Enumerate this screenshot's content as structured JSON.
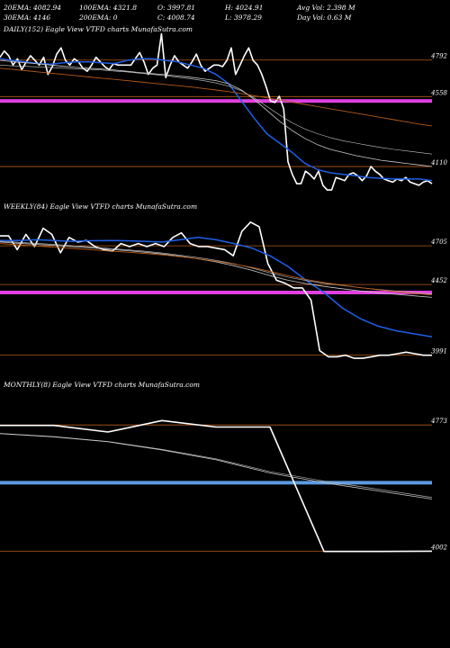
{
  "header": {
    "row1": [
      "20EMA: 4082.94",
      "100EMA: 4321.8",
      "O: 3997.81",
      "H: 4024.91",
      "Avg Vol: 2.398  M"
    ],
    "row2": [
      "30EMA: 4146",
      "200EMA: 0",
      "C: 4008.74",
      "L: 3978.29",
      "Day Vol: 0.63 M"
    ]
  },
  "colors": {
    "background": "#000000",
    "price": "#ffffff",
    "ema_fast": "#1f5fe6",
    "ema_grey": "#c8c8c8",
    "ema_slow": "#b35a16",
    "level": "#b35a16",
    "magenta": "#e040e0",
    "blue_band": "#5b9be0"
  },
  "chart_data": [
    {
      "type": "line",
      "title": "DAILY(152) Eagle   View  VTFD charts MunafaSutra.com",
      "ylim": [
        3920,
        4900
      ],
      "ticks": [
        {
          "value": 4792,
          "label": "4792"
        },
        {
          "value": 4558,
          "label": "4558"
        },
        {
          "value": 4110,
          "label": "4110"
        }
      ],
      "magenta_level": 4530,
      "series": [
        {
          "role": "price",
          "values": [
            4810,
            4850,
            4820,
            4760,
            4800,
            4730,
            4780,
            4820,
            4790,
            4760,
            4810,
            4700,
            4750,
            4830,
            4870,
            4790,
            4760,
            4800,
            4780,
            4740,
            4720,
            4760,
            4810,
            4780,
            4750,
            4730,
            4770,
            4760,
            4760,
            4760,
            4760,
            4800,
            4840,
            4780,
            4700,
            4740,
            4760,
            4960,
            4680,
            4760,
            4820,
            4780,
            4760,
            4740,
            4780,
            4830,
            4760,
            4720,
            4740,
            4760,
            4760,
            4750,
            4790,
            4870,
            4700,
            4760,
            4820,
            4870,
            4790,
            4760,
            4700,
            4620,
            4530,
            4520,
            4560,
            4480,
            4140,
            4060,
            4000,
            4000,
            4080,
            4060,
            4030,
            4080,
            3990,
            3960,
            3960,
            4040,
            4030,
            4020,
            4060,
            4070,
            4050,
            4020,
            4050,
            4110,
            4080,
            4060,
            4030,
            4020,
            4010,
            4030,
            4020,
            4040,
            4010,
            4000,
            3990,
            4010,
            4020,
            4000
          ]
        },
        {
          "role": "ema_fast",
          "values": [
            4800,
            4790,
            4780,
            4770,
            4765,
            4775,
            4780,
            4780,
            4775,
            4770,
            4790,
            4800,
            4800,
            4790,
            4780,
            4760,
            4740,
            4700,
            4640,
            4530,
            4420,
            4320,
            4260,
            4200,
            4130,
            4090,
            4070,
            4060,
            4050,
            4040,
            4035,
            4030,
            4030,
            4030,
            4020
          ]
        },
        {
          "role": "ema_grey",
          "values": [
            4790,
            4782,
            4775,
            4768,
            4760,
            4752,
            4745,
            4740,
            4735,
            4728,
            4720,
            4712,
            4705,
            4698,
            4690,
            4682,
            4672,
            4660,
            4640,
            4600,
            4540,
            4470,
            4400,
            4340,
            4290,
            4250,
            4220,
            4200,
            4180,
            4165,
            4150,
            4140,
            4130,
            4120,
            4110
          ]
        },
        {
          "role": "ema_grey2",
          "values": [
            4760,
            4755,
            4752,
            4748,
            4745,
            4740,
            4736,
            4732,
            4728,
            4722,
            4716,
            4708,
            4700,
            4692,
            4682,
            4672,
            4660,
            4645,
            4625,
            4595,
            4550,
            4495,
            4440,
            4390,
            4350,
            4320,
            4295,
            4275,
            4260,
            4245,
            4232,
            4220,
            4210,
            4200,
            4190
          ]
        },
        {
          "role": "ema_slow",
          "values": [
            4740,
            4732,
            4724,
            4716,
            4708,
            4700,
            4692,
            4684,
            4676,
            4668,
            4660,
            4652,
            4644,
            4636,
            4628,
            4620,
            4610,
            4600,
            4590,
            4578,
            4564,
            4550,
            4536,
            4522,
            4508,
            4494,
            4480,
            4466,
            4452,
            4438,
            4424,
            4410,
            4396,
            4382,
            4370
          ]
        }
      ]
    },
    {
      "type": "line",
      "title": "WEEKLY(84) Eagle   View  VTFD charts MunafaSutra.com",
      "ylim": [
        3900,
        4900
      ],
      "ticks": [
        {
          "value": 4705,
          "label": "4705"
        },
        {
          "value": 4452,
          "label": "4452"
        },
        {
          "value": 3991,
          "label": "3991"
        }
      ],
      "magenta_level": 4400,
      "series": [
        {
          "role": "price",
          "values": [
            4770,
            4770,
            4680,
            4780,
            4700,
            4820,
            4780,
            4660,
            4760,
            4730,
            4740,
            4700,
            4680,
            4670,
            4720,
            4700,
            4720,
            4700,
            4720,
            4700,
            4760,
            4790,
            4720,
            4700,
            4700,
            4690,
            4680,
            4640,
            4800,
            4860,
            4830,
            4590,
            4480,
            4460,
            4430,
            4430,
            4350,
            4020,
            3980,
            3980,
            3990,
            3970,
            3970,
            3980,
            3990,
            3990,
            4000,
            4010,
            4000,
            3990,
            3990
          ]
        },
        {
          "role": "ema_fast",
          "values": [
            4740,
            4740,
            4745,
            4740,
            4735,
            4738,
            4740,
            4738,
            4735,
            4730,
            4745,
            4760,
            4745,
            4720,
            4690,
            4640,
            4570,
            4480,
            4400,
            4300,
            4230,
            4180,
            4150,
            4130,
            4110
          ]
        },
        {
          "role": "ema_grey",
          "values": [
            4730,
            4722,
            4715,
            4708,
            4700,
            4692,
            4683,
            4674,
            4664,
            4652,
            4638,
            4620,
            4600,
            4575,
            4545,
            4510,
            4480,
            4458,
            4440,
            4425,
            4410,
            4398,
            4388,
            4378,
            4368
          ]
        },
        {
          "role": "ema_grey2",
          "values": [
            4735,
            4728,
            4721,
            4714,
            4706,
            4698,
            4689,
            4680,
            4670,
            4658,
            4644,
            4628,
            4610,
            4588,
            4560,
            4528,
            4500,
            4478,
            4460,
            4446,
            4432,
            4420,
            4410,
            4400,
            4390
          ]
        },
        {
          "role": "ema_slow",
          "values": [
            4720,
            4712,
            4704,
            4696,
            4688,
            4680,
            4672,
            4664,
            4656,
            4646,
            4634,
            4620,
            4604,
            4586,
            4564,
            4538,
            4510,
            4485,
            4465,
            4448,
            4432,
            4418,
            4406,
            4394,
            4384
          ]
        }
      ]
    },
    {
      "type": "line",
      "title": "MONTHLY(8) Eagle   View  VTFD charts MunafaSutra.com",
      "ylim": [
        3850,
        4950
      ],
      "ticks": [
        {
          "value": 4773,
          "label": "4773"
        },
        {
          "value": 4002,
          "label": "4002"
        }
      ],
      "blue_level": 4420,
      "series": [
        {
          "role": "price",
          "values": [
            4770,
            4770,
            4730,
            4800,
            4760,
            4760,
            4000,
            4000,
            4002
          ]
        },
        {
          "role": "ema_grey",
          "values": [
            4720,
            4700,
            4670,
            4620,
            4560,
            4480,
            4420,
            4370,
            4320
          ]
        },
        {
          "role": "ema_grey2",
          "values": [
            4722,
            4702,
            4672,
            4624,
            4566,
            4488,
            4430,
            4380,
            4330
          ]
        }
      ]
    }
  ]
}
